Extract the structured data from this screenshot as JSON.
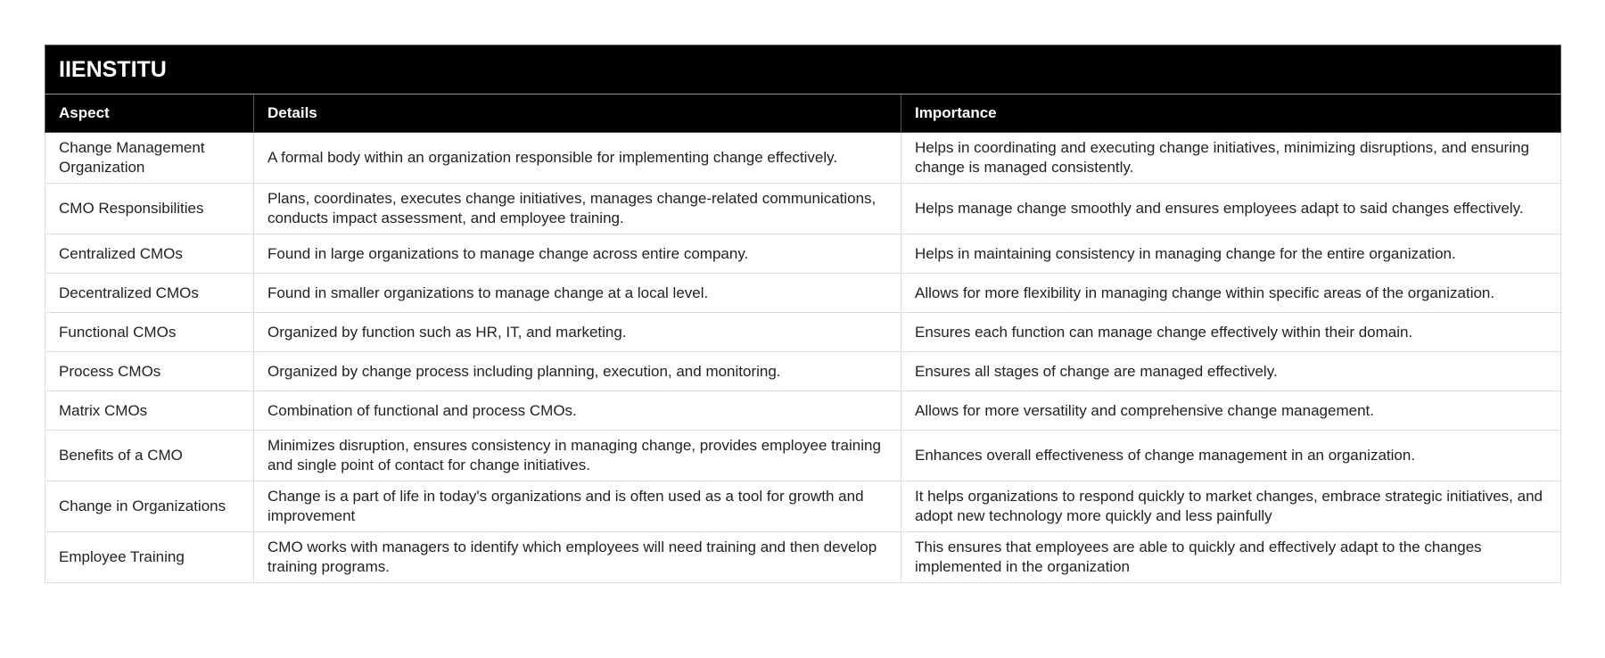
{
  "header": {
    "title": "IIENSTITU"
  },
  "table": {
    "columns": [
      "Aspect",
      "Details",
      "Importance"
    ],
    "rows": [
      [
        "Change Management Organization",
        "A formal body within an organization responsible for implementing change effectively.",
        "Helps in coordinating and executing change initiatives, minimizing disruptions, and ensuring change is managed consistently."
      ],
      [
        "CMO Responsibilities",
        "Plans, coordinates, executes change initiatives, manages change-related communications, conducts impact assessment, and employee training.",
        "Helps manage change smoothly and ensures employees adapt to said changes effectively."
      ],
      [
        "Centralized CMOs",
        "Found in large organizations to manage change across entire company.",
        "Helps in maintaining consistency in managing change for the entire organization."
      ],
      [
        "Decentralized CMOs",
        "Found in smaller organizations to manage change at a local level.",
        "Allows for more flexibility in managing change within specific areas of the organization."
      ],
      [
        "Functional CMOs",
        "Organized by function such as HR, IT, and marketing.",
        "Ensures each function can manage change effectively within their domain."
      ],
      [
        "Process CMOs",
        "Organized by change process including planning, execution, and monitoring.",
        "Ensures all stages of change are managed effectively."
      ],
      [
        "Matrix CMOs",
        "Combination of functional and process CMOs.",
        "Allows for more versatility and comprehensive change management."
      ],
      [
        "Benefits of a CMO",
        "Minimizes disruption, ensures consistency in managing change, provides employee training and single point of contact for change initiatives.",
        "Enhances overall effectiveness of change management in an organization."
      ],
      [
        "Change in Organizations",
        "Change is a part of life in today's organizations and is often used as a tool for growth and improvement",
        "It helps organizations to respond quickly to market changes, embrace strategic initiatives, and adopt new technology more quickly and less painfully"
      ],
      [
        "Employee Training",
        "CMO works with managers to identify which employees will need training and then develop training programs.",
        "This ensures that employees are able to quickly and effectively adapt to the changes implemented in the organization"
      ]
    ]
  }
}
